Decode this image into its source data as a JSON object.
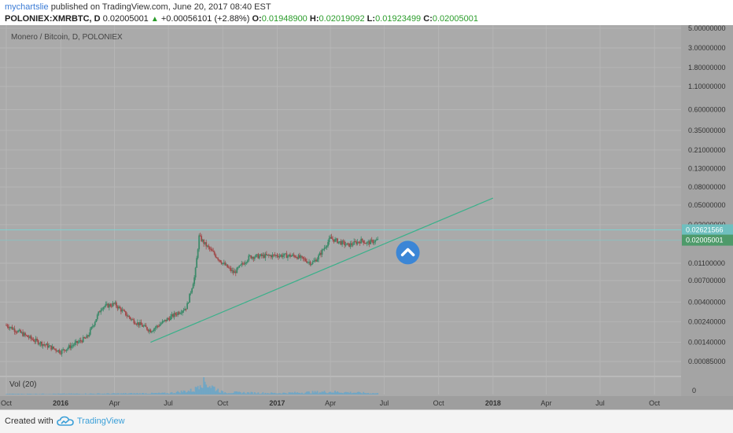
{
  "header": {
    "author": "mychartslie",
    "published_text": "published on TradingView.com, June 20, 2017 08:40 EST",
    "symbol": "POLONIEX:XMRBTC, D",
    "last_price": "0.02005001",
    "change": "+0.00056101 (+2.88%)",
    "open_label": "O:",
    "open": "0.01948900",
    "high_label": "H:",
    "high": "0.02019092",
    "low_label": "L:",
    "low": "0.01923499",
    "close_label": "C:",
    "close": "0.02005001"
  },
  "footer": {
    "created_with": "Created with",
    "brand": "TradingView"
  },
  "colors": {
    "background": "#aaaaaa",
    "grid": "#b8b8b8",
    "candle_up": "#3d8a6a",
    "candle_down": "#a04a4a",
    "trendline": "#3ab08a",
    "hline_top": "#7fd0d0",
    "hline_current": "#8fbfbf",
    "price_badge_current": "#4e9a6a",
    "price_badge_top": "#6fbfbf",
    "volume": "#6aa6c8",
    "brand": "#3a9fd8"
  },
  "icons": {
    "marker": "chevron-up-icon",
    "logo": "tradingview-cloud-icon"
  },
  "chart_data": {
    "type": "candlestick",
    "title": "Monero / Bitcoin, D, POLONIEX",
    "y_scale": "log",
    "ylim": [
      0.0006,
      5.0
    ],
    "y_ticks": [
      "5.00000000",
      "3.00000000",
      "1.80000000",
      "1.10000000",
      "0.60000000",
      "0.35000000",
      "0.21000000",
      "0.13000000",
      "0.08000000",
      "0.05000000",
      "0.03000000",
      "0.01100000",
      "0.00700000",
      "0.00400000",
      "0.00240000",
      "0.00140000",
      "0.00085000"
    ],
    "x_range": [
      "2015-10-01",
      "2018-11-15"
    ],
    "x_ticks": [
      "Oct",
      "2016",
      "Apr",
      "Jul",
      "Oct",
      "2017",
      "Apr",
      "Jul",
      "Oct",
      "2018",
      "Apr",
      "Jul",
      "Oct"
    ],
    "price_series": {
      "x": [
        "2015-10-01",
        "2015-11-15",
        "2016-01-01",
        "2016-02-15",
        "2016-03-10",
        "2016-04-01",
        "2016-05-01",
        "2016-06-01",
        "2016-07-01",
        "2016-08-01",
        "2016-08-15",
        "2016-08-22",
        "2016-09-01",
        "2016-10-01",
        "2016-10-20",
        "2016-11-15",
        "2017-01-01",
        "2017-02-01",
        "2017-03-01",
        "2017-03-10",
        "2017-04-01",
        "2017-05-01",
        "2017-05-25",
        "2017-06-01",
        "2017-06-20"
      ],
      "y": [
        0.0022,
        0.0015,
        0.0011,
        0.0016,
        0.0035,
        0.0038,
        0.0025,
        0.0019,
        0.0026,
        0.0035,
        0.008,
        0.022,
        0.018,
        0.011,
        0.0085,
        0.013,
        0.0135,
        0.0133,
        0.011,
        0.0125,
        0.021,
        0.0175,
        0.02,
        0.0185,
        0.02005
      ]
    },
    "trendline": {
      "x": [
        "2016-06-01",
        "2018-01-01"
      ],
      "y": [
        0.0014,
        0.06
      ]
    },
    "horizontal_lines": [
      0.02621566,
      0.02005001
    ],
    "price_labels": [
      "0.02621566",
      "0.02005001"
    ],
    "volume": {
      "label": "Vol (20)",
      "zero_label": "0",
      "x": [
        "2015-10-01",
        "2016-01-01",
        "2016-04-01",
        "2016-07-01",
        "2016-08-15",
        "2016-08-25",
        "2016-09-10",
        "2016-10-01",
        "2017-01-01",
        "2017-04-01",
        "2017-06-20"
      ],
      "y": [
        0.5,
        0.6,
        0.8,
        1.2,
        4.0,
        14.0,
        8.0,
        2.0,
        1.2,
        2.5,
        1.0
      ],
      "ylim": [
        0,
        15
      ]
    },
    "grid": true
  }
}
